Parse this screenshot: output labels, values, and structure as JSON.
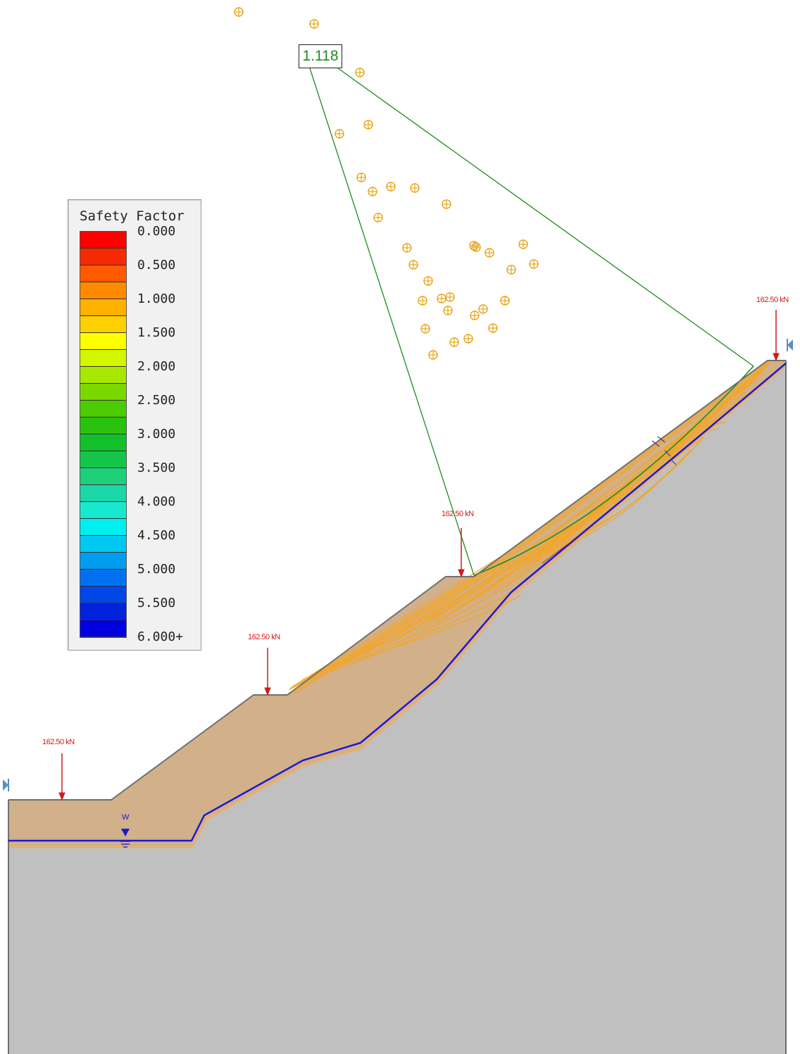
{
  "legend": {
    "title": "Safety Factor",
    "labels": [
      "0.000",
      "0.500",
      "1.000",
      "1.500",
      "2.000",
      "2.500",
      "3.000",
      "3.500",
      "4.000",
      "4.500",
      "5.000",
      "5.500",
      "6.000+"
    ],
    "colors": [
      "#ff0000",
      "#f52a00",
      "#ff5a00",
      "#ff8a00",
      "#ffb000",
      "#ffd000",
      "#ffff00",
      "#d4f500",
      "#a8e800",
      "#7ad800",
      "#4ccc00",
      "#29c20f",
      "#12c12a",
      "#13c64a",
      "#1ed07a",
      "#1ad8a8",
      "#18e8d0",
      "#00f0f0",
      "#00c8f0",
      "#009cf0",
      "#0070f0",
      "#0046e8",
      "#0022dc",
      "#0000e0"
    ]
  },
  "critical_surface": {
    "safety_factor_label": "1.118",
    "color": "#1d8c1d"
  },
  "loads": [
    {
      "label": "162.50 kN"
    },
    {
      "label": "162.50 kN"
    },
    {
      "label": "162.50 kN"
    },
    {
      "label": "162.50 kN"
    }
  ],
  "water_table": {
    "tag": "W",
    "color": "#1a1ad0"
  },
  "colors": {
    "soil": "#d2b08a",
    "bedrock": "#c0c0c0",
    "slip_surfaces": "#f5a623",
    "grid_centers": "#e8a317",
    "load_arrows": "#d11a1a",
    "outline": "#707070"
  }
}
